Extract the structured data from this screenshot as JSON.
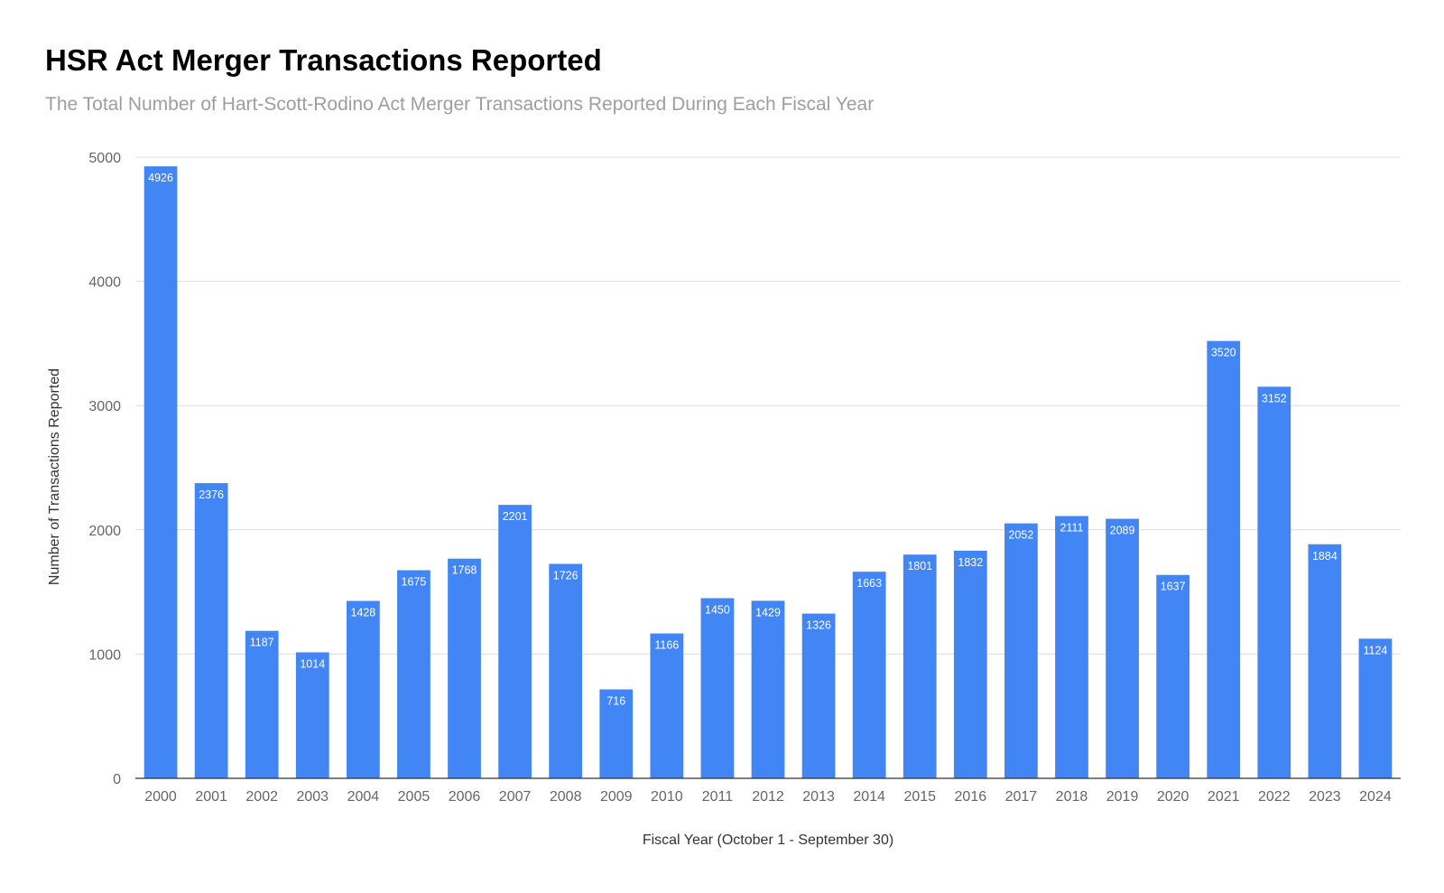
{
  "chart_data": {
    "type": "bar",
    "title": "HSR Act Merger Transactions Reported",
    "subtitle": "The Total Number of Hart-Scott-Rodino Act Merger Transactions Reported During Each Fiscal Year",
    "xlabel": "Fiscal Year (October 1 - September 30)",
    "ylabel": "Number of Transactions Reported",
    "categories": [
      "2000",
      "2001",
      "2002",
      "2003",
      "2004",
      "2005",
      "2006",
      "2007",
      "2008",
      "2009",
      "2010",
      "2011",
      "2012",
      "2013",
      "2014",
      "2015",
      "2016",
      "2017",
      "2018",
      "2019",
      "2020",
      "2021",
      "2022",
      "2023",
      "2024"
    ],
    "values": [
      4926,
      2376,
      1187,
      1014,
      1428,
      1675,
      1768,
      2201,
      1726,
      716,
      1166,
      1450,
      1429,
      1326,
      1663,
      1801,
      1832,
      2052,
      2111,
      2089,
      1637,
      3520,
      3152,
      1884,
      1124
    ],
    "ylim": [
      0,
      5000
    ],
    "yticks": [
      0,
      1000,
      2000,
      3000,
      4000,
      5000
    ],
    "grid": true,
    "legend": "none",
    "data_labels": true,
    "bar_color": "#4285f4",
    "grid_color": "#dddddd",
    "axis_color": "#333333"
  }
}
